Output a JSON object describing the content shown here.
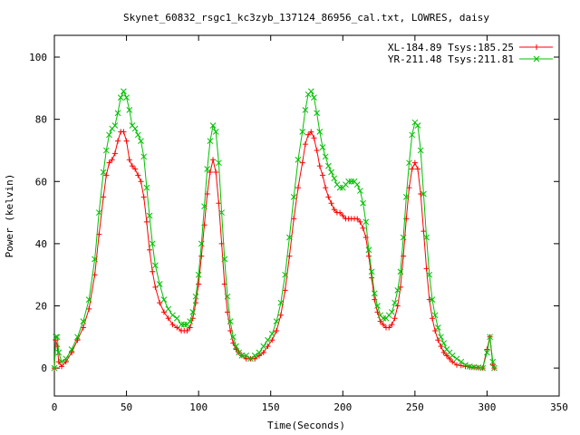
{
  "chart_data": {
    "type": "line",
    "title": "Skynet_60832_rsgc1_kc3zyb_137124_86956_cal.txt, LOWRES, daisy",
    "xlabel": "Time(Seconds)",
    "ylabel": "Power (kelvin)",
    "xlim": [
      0,
      350
    ],
    "ylim": [
      -9,
      107
    ],
    "xticks": [
      0,
      50,
      100,
      150,
      200,
      250,
      300,
      350
    ],
    "yticks": [
      0,
      20,
      40,
      60,
      80,
      100
    ],
    "grid": false,
    "legend_position": "top-right",
    "series": [
      {
        "name": "XL-184.89 Tsys:185.25",
        "color": "#ff0000",
        "marker": "+",
        "x": [
          0,
          1,
          2,
          3,
          5,
          8,
          12,
          16,
          20,
          24,
          28,
          31,
          34,
          36,
          38,
          40,
          42,
          44,
          46,
          48,
          50,
          52,
          54,
          56,
          58,
          60,
          62,
          64,
          66,
          68,
          70,
          73,
          76,
          79,
          82,
          85,
          88,
          90,
          92,
          94,
          96,
          98,
          100,
          102,
          104,
          106,
          108,
          110,
          112,
          114,
          116,
          118,
          120,
          122,
          124,
          126,
          128,
          130,
          133,
          136,
          139,
          142,
          145,
          148,
          151,
          154,
          157,
          160,
          163,
          166,
          169,
          172,
          174,
          176,
          178,
          180,
          182,
          184,
          186,
          188,
          190,
          192,
          194,
          196,
          198,
          200,
          202,
          204,
          206,
          208,
          210,
          212,
          214,
          216,
          218,
          220,
          222,
          224,
          226,
          228,
          230,
          232,
          234,
          236,
          238,
          240,
          242,
          244,
          246,
          248,
          250,
          252,
          254,
          256,
          258,
          260,
          262,
          264,
          266,
          268,
          270,
          272,
          274,
          276,
          279,
          282,
          285,
          288,
          291,
          294,
          297,
          300,
          302,
          304,
          305
        ],
        "values": [
          0,
          9,
          7,
          2,
          0.5,
          2,
          5,
          9,
          13,
          19,
          30,
          43,
          55,
          62,
          66,
          67,
          69,
          73,
          76,
          76,
          73,
          67,
          65,
          64,
          62,
          60,
          55,
          47,
          38,
          31,
          26,
          21,
          18,
          16,
          14,
          13,
          12,
          12,
          12,
          13,
          16,
          21,
          27,
          36,
          46,
          56,
          63,
          67,
          63,
          53,
          40,
          27,
          18,
          12,
          8,
          6,
          5,
          4,
          3,
          3,
          3,
          4,
          5,
          7,
          9,
          12,
          17,
          25,
          36,
          48,
          58,
          66,
          72,
          75,
          76,
          74,
          70,
          65,
          62,
          58,
          55,
          53,
          51,
          50,
          50,
          49,
          48,
          48,
          48,
          48,
          48,
          47,
          45,
          42,
          36,
          29,
          22,
          18,
          15,
          14,
          13,
          13,
          14,
          16,
          20,
          26,
          36,
          48,
          58,
          64,
          66,
          64,
          56,
          44,
          32,
          22,
          16,
          12,
          9,
          7,
          5,
          4,
          3,
          2,
          1,
          0.8,
          0.5,
          0.3,
          0.2,
          0.1,
          0,
          6,
          10,
          1,
          0
        ]
      },
      {
        "name": "YR-211.48 Tsys:211.81",
        "color": "#00c000",
        "marker": "x",
        "x": [
          0,
          1,
          2,
          3,
          5,
          8,
          12,
          16,
          20,
          24,
          28,
          31,
          34,
          36,
          38,
          40,
          42,
          44,
          46,
          48,
          50,
          52,
          54,
          56,
          58,
          60,
          62,
          64,
          66,
          68,
          70,
          73,
          76,
          79,
          82,
          85,
          88,
          90,
          92,
          94,
          96,
          98,
          100,
          102,
          104,
          106,
          108,
          110,
          112,
          114,
          116,
          118,
          120,
          122,
          124,
          126,
          128,
          130,
          133,
          136,
          139,
          142,
          145,
          148,
          151,
          154,
          157,
          160,
          163,
          166,
          169,
          172,
          174,
          176,
          178,
          180,
          182,
          184,
          186,
          188,
          190,
          192,
          194,
          196,
          198,
          200,
          202,
          204,
          206,
          208,
          210,
          212,
          214,
          216,
          218,
          220,
          222,
          224,
          226,
          228,
          230,
          232,
          234,
          236,
          238,
          240,
          242,
          244,
          246,
          248,
          250,
          252,
          254,
          256,
          258,
          260,
          262,
          264,
          266,
          268,
          270,
          272,
          274,
          276,
          279,
          282,
          285,
          288,
          291,
          294,
          297,
          300,
          302,
          304,
          305
        ],
        "values": [
          0,
          10,
          10,
          5,
          2,
          3,
          6,
          10,
          15,
          22,
          35,
          50,
          63,
          70,
          75,
          77,
          78,
          82,
          87,
          89,
          87,
          83,
          78,
          77,
          75,
          73,
          68,
          58,
          49,
          40,
          33,
          27,
          22,
          19,
          17,
          16,
          14,
          14,
          14,
          15,
          18,
          23,
          30,
          40,
          52,
          64,
          73,
          78,
          76,
          66,
          50,
          35,
          23,
          15,
          10,
          7,
          5,
          4,
          4,
          3,
          4,
          5,
          7,
          9,
          11,
          15,
          21,
          30,
          42,
          55,
          67,
          76,
          83,
          88,
          89,
          87,
          82,
          76,
          71,
          68,
          65,
          63,
          61,
          59,
          58,
          58,
          59,
          60,
          60,
          60,
          59,
          57,
          53,
          47,
          38,
          31,
          24,
          20,
          17,
          16,
          16,
          17,
          18,
          21,
          25,
          31,
          42,
          55,
          66,
          75,
          79,
          78,
          70,
          56,
          42,
          30,
          22,
          17,
          13,
          10,
          8,
          6,
          5,
          4,
          3,
          2,
          1,
          0.5,
          0.3,
          0.2,
          0,
          5,
          10,
          2,
          0
        ]
      }
    ]
  }
}
